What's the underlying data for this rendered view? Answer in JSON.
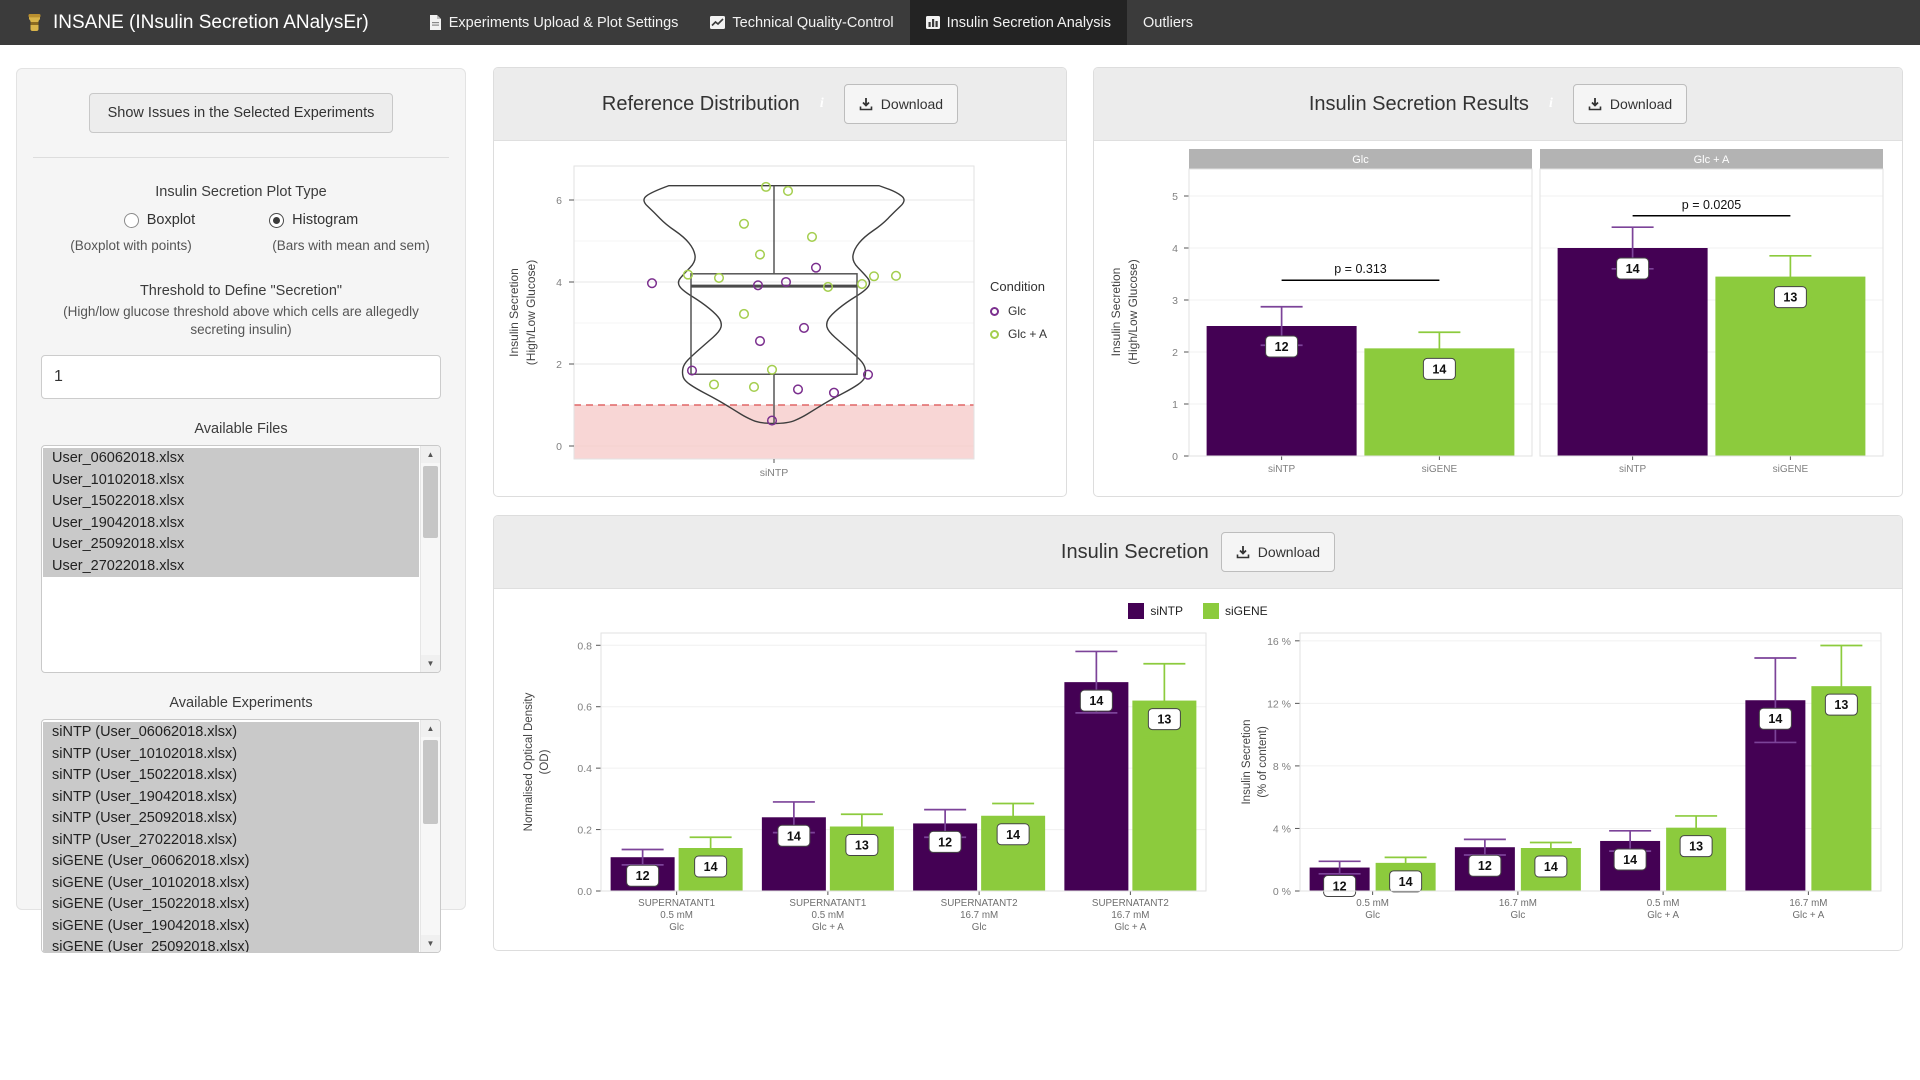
{
  "navbar": {
    "brand": "INSANE (INsulin Secretion ANalysEr)",
    "tabs": [
      {
        "label": "Experiments Upload & Plot Settings",
        "icon": "file-icon",
        "active": false
      },
      {
        "label": "Technical Quality-Control",
        "icon": "line-chart-icon",
        "active": false
      },
      {
        "label": "Insulin Secretion Analysis",
        "icon": "bar-chart-icon",
        "active": true
      },
      {
        "label": "Outliers",
        "icon": null,
        "active": false
      }
    ]
  },
  "sidebar": {
    "show_issues_button": "Show Issues in the Selected Experiments",
    "plot_type": {
      "label": "Insulin Secretion Plot Type",
      "options": [
        {
          "label": "Boxplot",
          "caption": "(Boxplot with points)",
          "selected": false
        },
        {
          "label": "Histogram",
          "caption": "(Bars with mean and sem)",
          "selected": true
        }
      ]
    },
    "threshold": {
      "label": "Threshold to Define \"Secretion\"",
      "help": "(High/low glucose threshold above which cells are allegedly secreting insulin)",
      "value": "1"
    },
    "available_files": {
      "label": "Available Files",
      "items": [
        "User_06062018.xlsx",
        "User_10102018.xlsx",
        "User_15022018.xlsx",
        "User_19042018.xlsx",
        "User_25092018.xlsx",
        "User_27022018.xlsx"
      ]
    },
    "available_experiments": {
      "label": "Available Experiments",
      "items": [
        "siNTP (User_06062018.xlsx)",
        "siNTP (User_10102018.xlsx)",
        "siNTP (User_15022018.xlsx)",
        "siNTP (User_19042018.xlsx)",
        "siNTP (User_25092018.xlsx)",
        "siNTP (User_27022018.xlsx)",
        "siGENE (User_06062018.xlsx)",
        "siGENE (User_10102018.xlsx)",
        "siGENE (User_15022018.xlsx)",
        "siGENE (User_19042018.xlsx)",
        "siGENE (User_25092018.xlsx)"
      ]
    }
  },
  "panels": {
    "reference": {
      "title": "Reference Distribution",
      "download_label": "Download"
    },
    "results": {
      "title": "Insulin Secretion Results",
      "download_label": "Download"
    },
    "secretion": {
      "title": "Insulin Secretion",
      "download_label": "Download"
    }
  },
  "colors": {
    "siNTP": "#440154",
    "siGENE": "#8CCB3D",
    "siNTP_error": "#7C4399",
    "siGENE_error": "#8CCB3D",
    "glc_point": "#7B2F8E",
    "glca_point": "#A4CE4E",
    "threshold_band": "#F6CCCA",
    "threshold_line": "#E06666",
    "facet_strip": "#B3B3B3",
    "info": "#2B90C8",
    "navbar": "#3B3B3B"
  },
  "chart_data": [
    {
      "type": "violin-box",
      "title": "Reference Distribution",
      "xlabel": "siNTP",
      "ylabel": [
        "Insulin Secretion",
        "(High/Low Glucose)"
      ],
      "ylim": [
        0,
        6.8
      ],
      "yticks": [
        0,
        2,
        4,
        6
      ],
      "grid_minor": [
        1,
        3,
        5
      ],
      "threshold_line": 1,
      "threshold_band": [
        0,
        1
      ],
      "box": {
        "q1": 1.75,
        "median": 3.9,
        "q3": 4.2,
        "whisker_min": 0.55,
        "whisker_max": 6.35
      },
      "violin_profile": [
        [
          6.35,
          105
        ],
        [
          6.2,
          122
        ],
        [
          6.0,
          133
        ],
        [
          5.7,
          120
        ],
        [
          5.4,
          108
        ],
        [
          5.1,
          90
        ],
        [
          4.8,
          80
        ],
        [
          4.5,
          78
        ],
        [
          4.2,
          90
        ],
        [
          4.0,
          97
        ],
        [
          3.8,
          92
        ],
        [
          3.5,
          72
        ],
        [
          3.2,
          57
        ],
        [
          3.0,
          52
        ],
        [
          2.8,
          54
        ],
        [
          2.5,
          68
        ],
        [
          2.2,
          82
        ],
        [
          2.0,
          90
        ],
        [
          1.8,
          92
        ],
        [
          1.6,
          90
        ],
        [
          1.4,
          78
        ],
        [
          1.2,
          62
        ],
        [
          1.0,
          48
        ],
        [
          0.85,
          38
        ],
        [
          0.7,
          28
        ],
        [
          0.55,
          14
        ]
      ],
      "legend": {
        "title": "Condition",
        "entries": [
          {
            "label": "Glc",
            "color_key": "glc_point"
          },
          {
            "label": "Glc + A",
            "color_key": "glca_point"
          }
        ]
      },
      "points": [
        {
          "v": 6.32,
          "dx": -8,
          "c": "glc_point_alt"
        },
        {
          "v": 6.32,
          "dx": -8,
          "c": "glca_point"
        },
        {
          "v": 6.22,
          "dx": 14,
          "c": "glca_point"
        },
        {
          "v": 5.42,
          "dx": -30,
          "c": "glca_point"
        },
        {
          "v": 5.1,
          "dx": 38,
          "c": "glca_point"
        },
        {
          "v": 4.67,
          "dx": -14,
          "c": "glca_point"
        },
        {
          "v": 4.35,
          "dx": 42,
          "c": "glc_point"
        },
        {
          "v": 4.18,
          "dx": -86,
          "c": "glca_point"
        },
        {
          "v": 4.1,
          "dx": -55,
          "c": "glca_point"
        },
        {
          "v": 4.14,
          "dx": 100,
          "c": "glca_point"
        },
        {
          "v": 3.97,
          "dx": -122,
          "c": "glc_point"
        },
        {
          "v": 4.0,
          "dx": 12,
          "c": "glc_point"
        },
        {
          "v": 3.92,
          "dx": -16,
          "c": "glc_point"
        },
        {
          "v": 3.88,
          "dx": 54,
          "c": "glca_point"
        },
        {
          "v": 3.95,
          "dx": 88,
          "c": "glca_point"
        },
        {
          "v": 4.15,
          "dx": 122,
          "c": "glca_point"
        },
        {
          "v": 3.22,
          "dx": -30,
          "c": "glca_point"
        },
        {
          "v": 2.88,
          "dx": 30,
          "c": "glc_point"
        },
        {
          "v": 2.56,
          "dx": -14,
          "c": "glc_point"
        },
        {
          "v": 1.84,
          "dx": -82,
          "c": "glc_point"
        },
        {
          "v": 1.86,
          "dx": -2,
          "c": "glca_point"
        },
        {
          "v": 1.74,
          "dx": 94,
          "c": "glc_point"
        },
        {
          "v": 1.5,
          "dx": -60,
          "c": "glca_point"
        },
        {
          "v": 1.44,
          "dx": -20,
          "c": "glca_point"
        },
        {
          "v": 1.38,
          "dx": 24,
          "c": "glc_point"
        },
        {
          "v": 1.3,
          "dx": 60,
          "c": "glc_point"
        },
        {
          "v": 0.62,
          "dx": -2,
          "c": "glc_point"
        }
      ]
    },
    {
      "type": "bar",
      "title": "Insulin Secretion Results",
      "ylabel": [
        "Insulin Secretion",
        "(High/Low Glucose)"
      ],
      "ylim": [
        0,
        5.5
      ],
      "yticks": [
        0,
        1,
        2,
        3,
        4,
        5
      ],
      "facets": [
        {
          "label": "Glc",
          "p_label": "p = 0.313",
          "p_line_y": 3.38,
          "categories": [
            "siNTP",
            "siGENE"
          ],
          "values": [
            2.5,
            2.07
          ],
          "errors_high": [
            2.87,
            2.38
          ],
          "n_labels": [
            12,
            14
          ]
        },
        {
          "label": "Glc + A",
          "p_label": "p = 0.0205",
          "p_line_y": 4.62,
          "categories": [
            "siNTP",
            "siGENE"
          ],
          "values": [
            4.0,
            3.45
          ],
          "errors_high": [
            4.4,
            3.85
          ],
          "n_labels": [
            14,
            13
          ]
        }
      ]
    },
    {
      "type": "bar",
      "title": "Insulin Secretion (Normalised Optical Density)",
      "ylabel": [
        "Normalised Optical Density",
        "(OD)"
      ],
      "ylim": [
        0,
        0.84
      ],
      "yticks": [
        0,
        0.2,
        0.4,
        0.6,
        0.8
      ],
      "ytick_labels": [
        "0.0",
        "0.2",
        "0.4",
        "0.6",
        "0.8"
      ],
      "categories": [
        [
          "SUPERNATANT1",
          "0.5 mM",
          "Glc"
        ],
        [
          "SUPERNATANT1",
          "0.5 mM",
          "Glc + A"
        ],
        [
          "SUPERNATANT2",
          "16.7 mM",
          "Glc"
        ],
        [
          "SUPERNATANT2",
          "16.7 mM",
          "Glc + A"
        ]
      ],
      "series": [
        {
          "name": "siNTP",
          "values": [
            0.11,
            0.24,
            0.22,
            0.68
          ],
          "errors_high": [
            0.135,
            0.29,
            0.265,
            0.78
          ],
          "n_labels": [
            12,
            14,
            12,
            14
          ]
        },
        {
          "name": "siGENE",
          "values": [
            0.14,
            0.21,
            0.245,
            0.62
          ],
          "errors_high": [
            0.175,
            0.25,
            0.285,
            0.74
          ],
          "n_labels": [
            14,
            13,
            14,
            13
          ]
        }
      ]
    },
    {
      "type": "bar",
      "title": "Insulin Secretion (% of content)",
      "ylabel": [
        "Insulin Secretion",
        "(% of content)"
      ],
      "ylim": [
        0,
        16.5
      ],
      "yticks": [
        0,
        4,
        8,
        12,
        16
      ],
      "ytick_labels": [
        "0 %",
        "4 %",
        "8 %",
        "12 %",
        "16 %"
      ],
      "categories": [
        [
          "0.5 mM",
          "Glc"
        ],
        [
          "16.7 mM",
          "Glc"
        ],
        [
          "0.5 mM",
          "Glc + A"
        ],
        [
          "16.7 mM",
          "Glc + A"
        ]
      ],
      "series": [
        {
          "name": "siNTP",
          "values": [
            1.5,
            2.8,
            3.2,
            12.2
          ],
          "errors_high": [
            1.9,
            3.3,
            3.85,
            14.9
          ],
          "n_labels": [
            12,
            12,
            14,
            14
          ]
        },
        {
          "name": "siGENE",
          "values": [
            1.8,
            2.75,
            4.05,
            13.1
          ],
          "errors_high": [
            2.15,
            3.1,
            4.8,
            15.7
          ],
          "n_labels": [
            14,
            14,
            13,
            13
          ]
        }
      ],
      "legend": [
        "siNTP",
        "siGENE"
      ]
    }
  ]
}
